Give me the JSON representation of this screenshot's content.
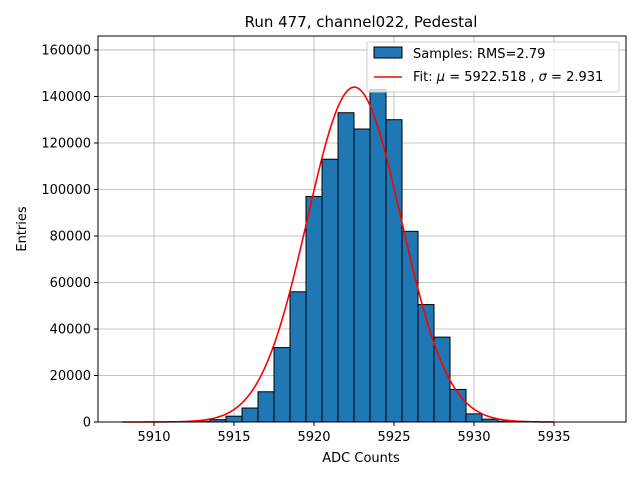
{
  "chart_data": {
    "type": "bar",
    "title": "Run 477, channel022, Pedestal",
    "xlabel": "ADC Counts",
    "ylabel": "Entries",
    "xlim": [
      5906.5,
      5939.5
    ],
    "ylim": [
      0,
      166000
    ],
    "xticks": [
      5910,
      5915,
      5920,
      5925,
      5930,
      5935
    ],
    "yticks": [
      0,
      20000,
      40000,
      60000,
      80000,
      100000,
      120000,
      140000,
      160000
    ],
    "grid": true,
    "legend_position": "top-right",
    "colors": {
      "bar_fill": "#1f77b4",
      "bar_edge": "#000000",
      "fit_line": "#ff0000",
      "grid": "#b0b0b0"
    },
    "histogram": {
      "name": "Samples: RMS=2.79",
      "bins": [
        {
          "x": 5913,
          "value": 300
        },
        {
          "x": 5914,
          "value": 1000
        },
        {
          "x": 5915,
          "value": 2500
        },
        {
          "x": 5916,
          "value": 6000
        },
        {
          "x": 5917,
          "value": 13000
        },
        {
          "x": 5918,
          "value": 32000
        },
        {
          "x": 5919,
          "value": 56000
        },
        {
          "x": 5920,
          "value": 97000
        },
        {
          "x": 5921,
          "value": 113000
        },
        {
          "x": 5922,
          "value": 133000
        },
        {
          "x": 5923,
          "value": 126000
        },
        {
          "x": 5924,
          "value": 143000
        },
        {
          "x": 5925,
          "value": 130000
        },
        {
          "x": 5926,
          "value": 82000
        },
        {
          "x": 5927,
          "value": 50500
        },
        {
          "x": 5928,
          "value": 36500
        },
        {
          "x": 5929,
          "value": 14000
        },
        {
          "x": 5930,
          "value": 3500
        },
        {
          "x": 5931,
          "value": 1200
        },
        {
          "x": 5932,
          "value": 300
        }
      ]
    },
    "fit": {
      "label_prefix": "Fit: ",
      "mu_symbol": "μ",
      "sigma_symbol": "σ",
      "mu": 5922.518,
      "sigma": 2.931,
      "amplitude": 144000,
      "x_range": [
        5908,
        5935
      ]
    }
  }
}
